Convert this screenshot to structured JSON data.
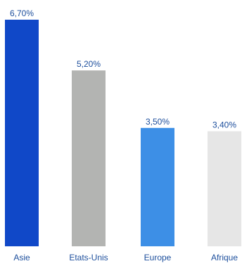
{
  "chart_data": {
    "type": "bar",
    "title": "",
    "xlabel": "",
    "ylabel": "",
    "categories": [
      "Asie",
      "Etats-Unis",
      "Europe",
      "Afrique"
    ],
    "values": [
      6.7,
      5.2,
      3.5,
      3.4
    ],
    "value_labels": [
      "6,70%",
      "5,20%",
      "3,50%",
      "3,40%"
    ],
    "ylim": [
      0,
      6.7
    ],
    "grid": false,
    "legend": "none",
    "bar_colors": [
      "#1048c8",
      "#b3b4b2",
      "#3d8fe6",
      "#e6e6e6"
    ],
    "value_label_color": "#1c4e9c",
    "category_label_color": "#1c4e9c"
  }
}
